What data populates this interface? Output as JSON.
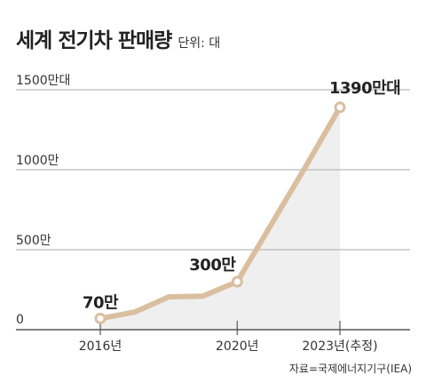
{
  "header": {
    "title": "세계 전기차 판매량",
    "unit": "단위: 대"
  },
  "source": "자료=국제에너지기구(IEA)",
  "chart_data": {
    "type": "area",
    "title": "세계 전기차 판매량",
    "unit": "단위: 대",
    "x": [
      2016,
      2017,
      2018,
      2019,
      2020,
      2021,
      2022,
      2023
    ],
    "series": [
      {
        "values": [
          70,
          110,
          205,
          210,
          300,
          660,
          1020,
          1390
        ]
      }
    ],
    "ylim": [
      0,
      1500
    ],
    "y_ticks": [
      {
        "value": 0,
        "label": "0"
      },
      {
        "value": 500,
        "label": "500만"
      },
      {
        "value": 1000,
        "label": "1000만"
      },
      {
        "value": 1500,
        "label": "1500만대"
      }
    ],
    "x_ticks": [
      {
        "value": 2016,
        "label": "2016년"
      },
      {
        "value": 2020,
        "label": "2020년"
      },
      {
        "value": 2023,
        "label": "2023년(추정)"
      }
    ],
    "annotations": [
      {
        "x": 2016,
        "y": 70,
        "label": "70만"
      },
      {
        "x": 2020,
        "y": 300,
        "label": "300만"
      },
      {
        "x": 2023,
        "y": 1390,
        "label": "1390만대"
      }
    ],
    "grid": true,
    "colors": {
      "line": "#d9bf9f",
      "area": "#efefef",
      "grid": "#a8a8a8",
      "axis": "#555555"
    }
  }
}
